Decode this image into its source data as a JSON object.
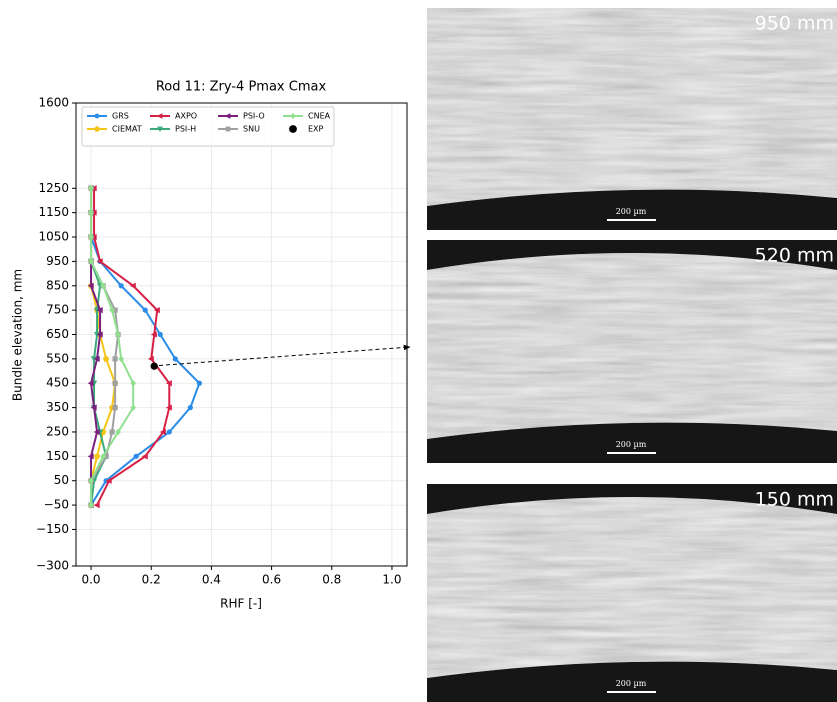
{
  "chart_data": {
    "type": "line",
    "title": "Rod 11:  Zry-4 Pmax Cmax",
    "xlabel": "RHF [-]",
    "ylabel": "Bundle elevation, mm",
    "y": [
      -50,
      50,
      150,
      250,
      350,
      450,
      550,
      650,
      750,
      850,
      950,
      1050,
      1150,
      1250
    ],
    "series": [
      {
        "name": "GRS",
        "color": "#2b8ce8",
        "marker": "circle",
        "values": [
          0.0,
          0.05,
          0.15,
          0.26,
          0.33,
          0.36,
          0.28,
          0.23,
          0.18,
          0.1,
          0.03,
          0.0,
          0.0,
          0.0
        ]
      },
      {
        "name": "CIEMAT",
        "color": "#f5c518",
        "marker": "pentagon",
        "values": [
          0.0,
          0.0,
          0.02,
          0.04,
          0.07,
          0.08,
          0.05,
          0.03,
          0.02,
          0.0,
          0.0,
          0.0,
          0.0,
          0.0
        ]
      },
      {
        "name": "AXPO",
        "color": "#d62045",
        "marker": "triangle-left",
        "values": [
          0.02,
          0.06,
          0.18,
          0.24,
          0.26,
          0.26,
          0.2,
          0.21,
          0.22,
          0.14,
          0.03,
          0.01,
          0.01,
          0.01
        ]
      },
      {
        "name": "PSI-H",
        "color": "#3aaa7a",
        "marker": "triangle-down",
        "values": [
          0.0,
          0.01,
          0.05,
          0.03,
          0.01,
          0.01,
          0.01,
          0.02,
          0.02,
          0.03,
          0.0,
          0.0,
          0.0,
          0.0
        ]
      },
      {
        "name": "PSI-O",
        "color": "#7b1f7e",
        "marker": "triangle-left",
        "values": [
          0.0,
          0.0,
          0.0,
          0.02,
          0.01,
          0.0,
          0.02,
          0.03,
          0.03,
          0.0,
          0.0,
          0.0,
          0.0,
          0.0
        ]
      },
      {
        "name": "SNU",
        "color": "#a0a0a0",
        "marker": "square",
        "values": [
          0.0,
          0.0,
          0.05,
          0.07,
          0.08,
          0.08,
          0.08,
          0.09,
          0.08,
          0.04,
          0.0,
          0.0,
          0.0,
          0.0
        ]
      },
      {
        "name": "CNEA",
        "color": "#90e090",
        "marker": "diamond",
        "values": [
          0.0,
          0.0,
          0.04,
          0.09,
          0.14,
          0.14,
          0.1,
          0.09,
          0.07,
          0.04,
          0.0,
          0.0,
          0.0,
          0.0
        ]
      },
      {
        "name": "EXP",
        "color": "#000000",
        "marker": "dot",
        "values": [
          0.21
        ],
        "y": [
          520
        ]
      }
    ],
    "xlim": [
      -0.05,
      1.05
    ],
    "xticks": [
      {
        "value": 0,
        "label": "0.0"
      },
      0.2,
      0.4,
      0.6,
      0.8,
      {
        "value": 1,
        "label": "1.0"
      }
    ],
    "ylim": [
      -300,
      1600
    ],
    "yticks": [
      {
        "value": -300,
        "label": "−300"
      },
      {
        "value": -150,
        "label": "−150"
      },
      {
        "value": -50,
        "label": "−50"
      },
      50,
      150,
      250,
      350,
      450,
      550,
      650,
      750,
      850,
      950,
      1050,
      1150,
      1250,
      1600
    ],
    "grid": true,
    "legend": "upper left",
    "legend_columns": 4
  },
  "micrographs": [
    {
      "label": "950 mm",
      "scale": "200 µm"
    },
    {
      "label": "520 mm",
      "scale": "200 µm"
    },
    {
      "label": "150 mm",
      "scale": "200 µm"
    }
  ]
}
